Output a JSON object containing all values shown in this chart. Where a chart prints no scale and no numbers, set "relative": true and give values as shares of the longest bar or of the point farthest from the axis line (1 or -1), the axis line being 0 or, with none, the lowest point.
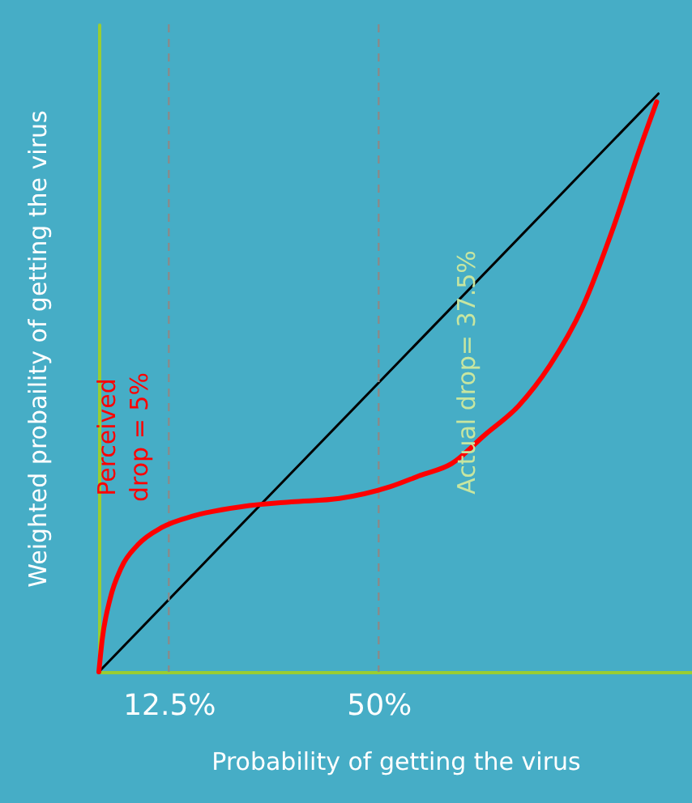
{
  "chart_data": {
    "type": "line",
    "relative": true,
    "xlabel": "Probability of getting the virus",
    "ylabel": "Weighted probaility of getting the virus",
    "xlim": [
      0,
      106
    ],
    "xticks": [
      {
        "value": 12.5,
        "label": "12.5%"
      },
      {
        "value": 50,
        "label": "50%"
      }
    ],
    "tick_labels": "x",
    "grid": false,
    "marker": "none",
    "line_style": "solid",
    "series": [
      {
        "color": "#000000",
        "x": [
          0,
          100
        ],
        "values": [
          0,
          1
        ]
      },
      {
        "color": "#ff0000",
        "x": [
          0,
          0.6,
          2,
          4,
          7,
          11.3,
          17,
          25.7,
          34.4,
          43,
          52,
          57.5,
          63,
          69,
          75,
          80.6,
          86.4,
          92,
          96.5,
          99.7
        ],
        "values": [
          0,
          0.056,
          0.126,
          0.18,
          0.22,
          0.25,
          0.27,
          0.286,
          0.294,
          0.3,
          0.32,
          0.34,
          0.36,
          0.41,
          0.46,
          0.53,
          0.63,
          0.77,
          0.9,
          0.986
        ]
      }
    ],
    "ref_lines": [
      {
        "axis": "x",
        "value": 12.5,
        "color": "#8a8a8a",
        "line_style": "dashed"
      },
      {
        "axis": "x",
        "value": 50,
        "color": "#8a8a8a",
        "line_style": "dashed"
      }
    ],
    "annotations": [
      "Perceived\ndrop = 5%",
      "Actual drop= 37.5%"
    ]
  }
}
